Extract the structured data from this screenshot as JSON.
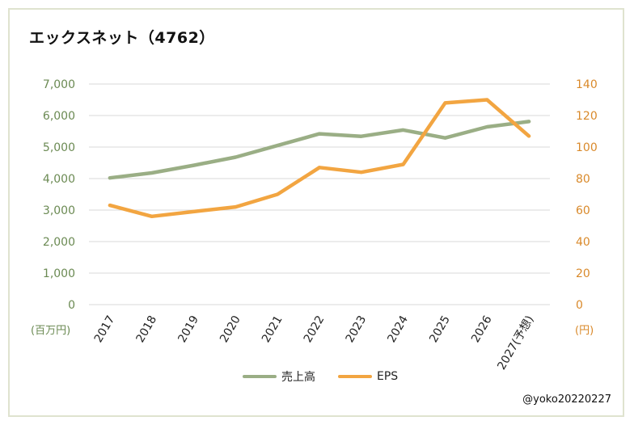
{
  "chart_data": {
    "type": "line",
    "title": "エックスネット（4762）",
    "categories": [
      "2017",
      "2018",
      "2019",
      "2020",
      "2021",
      "2022",
      "2023",
      "2024",
      "2025",
      "2026",
      "2027(予想)"
    ],
    "series": [
      {
        "name": "売上高",
        "axis": "left",
        "color": "#9aae85",
        "values": [
          4020,
          4180,
          4420,
          4680,
          5050,
          5420,
          5340,
          5540,
          5290,
          5640,
          5810
        ]
      },
      {
        "name": "EPS",
        "axis": "right",
        "color": "#f2a541",
        "values": [
          63,
          56,
          59,
          62,
          70,
          87,
          84,
          89,
          128,
          130,
          107
        ]
      }
    ],
    "y_left": {
      "ticks": [
        "0",
        "1,000",
        "2,000",
        "3,000",
        "4,000",
        "5,000",
        "6,000",
        "7,000"
      ],
      "range": [
        0,
        7000
      ],
      "unit": "(百万円)",
      "color": "#6b8a53"
    },
    "y_right": {
      "ticks": [
        "0",
        "20",
        "40",
        "60",
        "80",
        "100",
        "120",
        "140"
      ],
      "range": [
        0,
        140
      ],
      "unit": "(円)",
      "color": "#d9892a"
    },
    "grid": "horizontal",
    "legend_position": "bottom"
  },
  "credit": "@yoko20220227"
}
